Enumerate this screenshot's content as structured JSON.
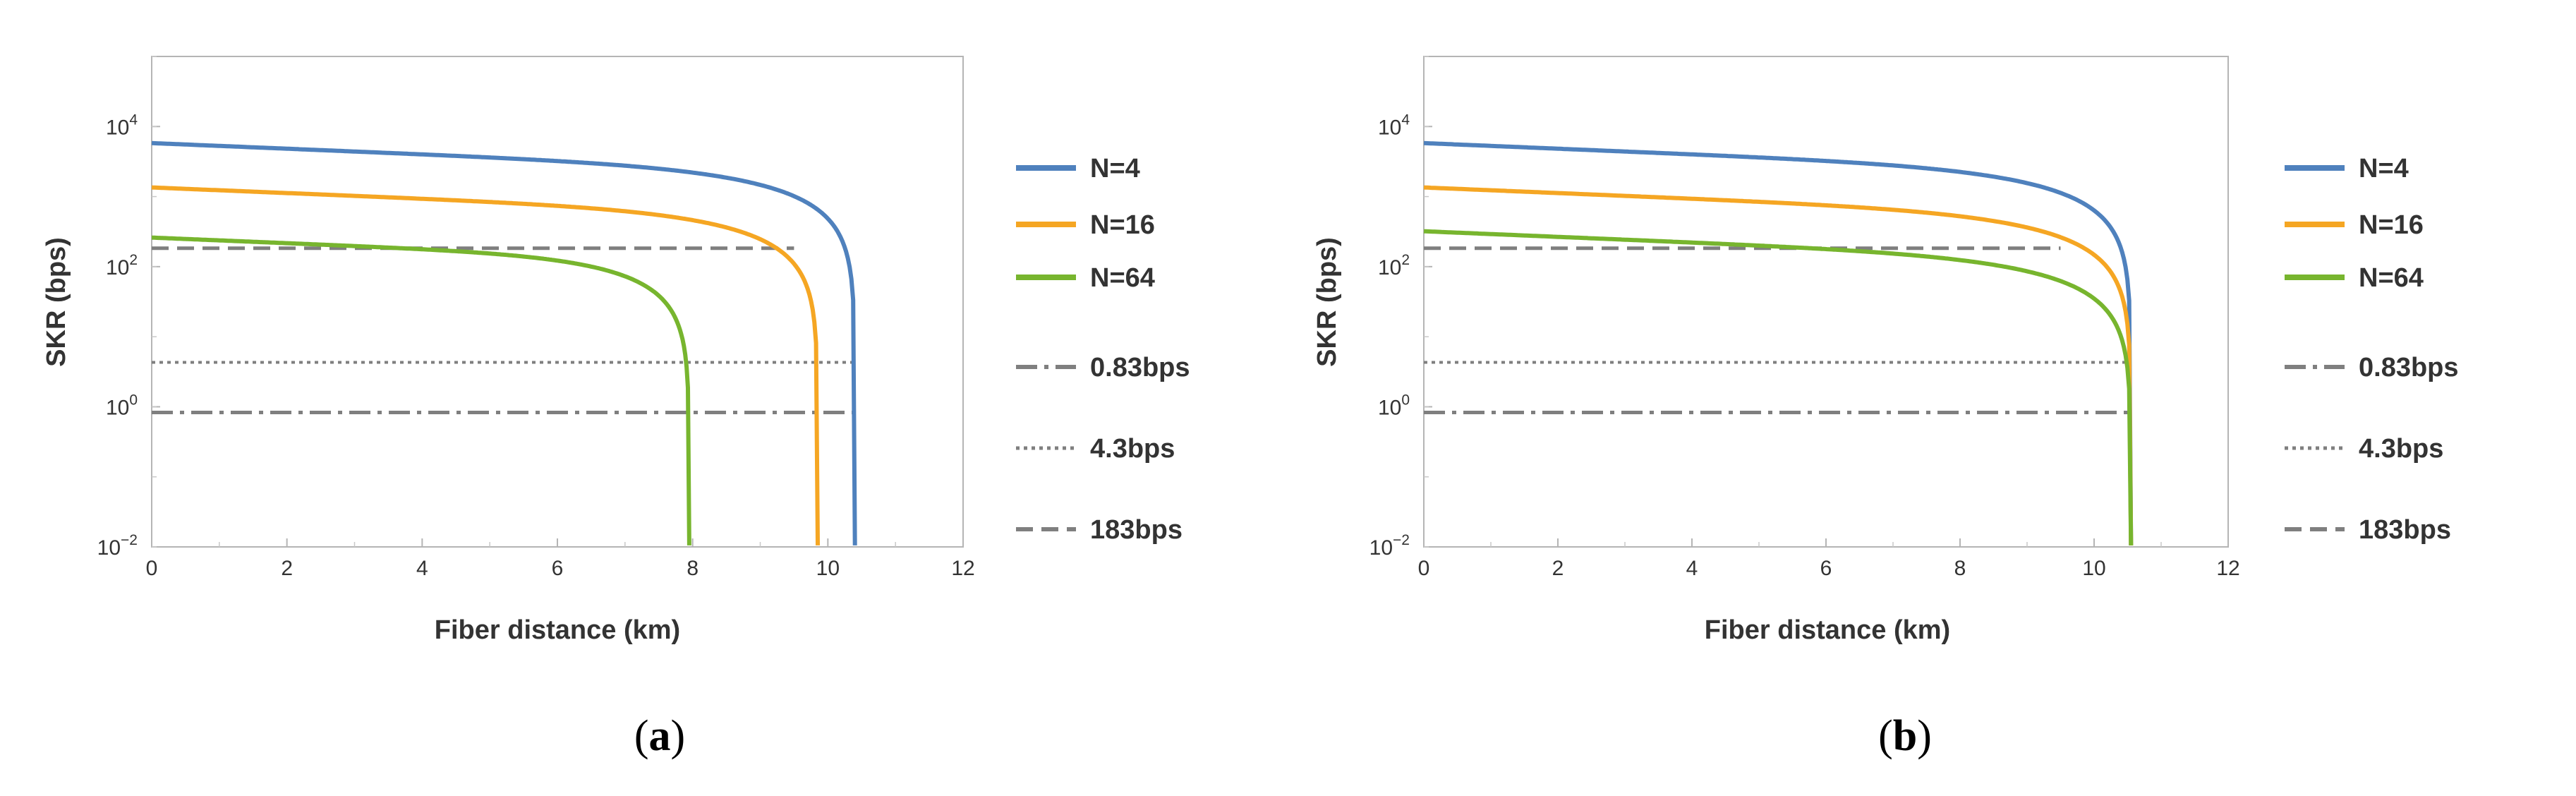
{
  "figure": {
    "panel_labels_left": [
      "(",
      ")"
    ],
    "panel_labels": [
      "a",
      "b"
    ]
  },
  "chart_data": [
    {
      "type": "line",
      "panel": "a",
      "xlabel": "Fiber distance (km)",
      "ylabel": "SKR (bps)",
      "xlim": [
        0,
        12
      ],
      "ylim_log10": [
        -2,
        5
      ],
      "y_scale": "log",
      "x_ticks": [
        "0",
        "2",
        "4",
        "6",
        "8",
        "10",
        "12"
      ],
      "y_ticks": [
        {
          "base": "10",
          "exp": "4"
        },
        {
          "base": "10",
          "exp": "2"
        },
        {
          "base": "10",
          "exp": "0"
        },
        {
          "base": "10",
          "exp": "−2"
        }
      ],
      "series": [
        {
          "name": "N=4",
          "color": "#4f81bd",
          "y0": 5800,
          "cutoff_km": 10.4
        },
        {
          "name": "N=16",
          "color": "#f5a623",
          "y0": 1350,
          "cutoff_km": 9.85
        },
        {
          "name": "N=64",
          "color": "#77b52e",
          "y0": 260,
          "cutoff_km": 7.95
        }
      ],
      "thresholds": [
        {
          "name": "0.83bps",
          "value": 0.83,
          "style": "dashdot",
          "x_end_km": 10.4
        },
        {
          "name": "4.3bps",
          "value": 4.3,
          "style": "dotted",
          "x_end_km": 10.4
        },
        {
          "name": "183bps",
          "value": 183,
          "style": "dashed",
          "x_end_km": 9.5
        }
      ],
      "legend_position": "right"
    },
    {
      "type": "line",
      "panel": "b",
      "xlabel": "Fiber distance (km)",
      "ylabel": "SKR (bps)",
      "xlim": [
        0,
        12
      ],
      "ylim_log10": [
        -2,
        5
      ],
      "y_scale": "log",
      "x_ticks": [
        "0",
        "2",
        "4",
        "6",
        "8",
        "10",
        "12"
      ],
      "y_ticks": [
        {
          "base": "10",
          "exp": "4"
        },
        {
          "base": "10",
          "exp": "2"
        },
        {
          "base": "10",
          "exp": "0"
        },
        {
          "base": "10",
          "exp": "−2"
        }
      ],
      "series": [
        {
          "name": "N=4",
          "color": "#4f81bd",
          "y0": 5800,
          "cutoff_km": 10.55
        },
        {
          "name": "N=16",
          "color": "#f5a623",
          "y0": 1350,
          "cutoff_km": 10.55
        },
        {
          "name": "N=64",
          "color": "#77b52e",
          "y0": 320,
          "cutoff_km": 10.55
        }
      ],
      "thresholds": [
        {
          "name": "0.83bps",
          "value": 0.83,
          "style": "dashdot",
          "x_end_km": 10.5
        },
        {
          "name": "4.3bps",
          "value": 4.3,
          "style": "dotted",
          "x_end_km": 10.5
        },
        {
          "name": "183bps",
          "value": 183,
          "style": "dashed",
          "x_end_km": 9.5
        }
      ],
      "legend_position": "right"
    }
  ]
}
